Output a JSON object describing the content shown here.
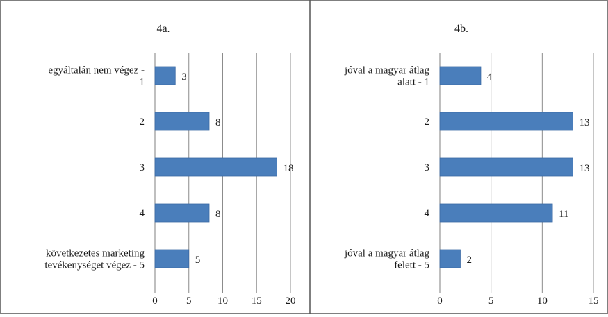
{
  "chart_data": [
    {
      "type": "bar",
      "orientation": "horizontal",
      "title": "4a.",
      "categories": [
        [
          "egyáltalán nem végez -",
          "1"
        ],
        [
          "2"
        ],
        [
          "3"
        ],
        [
          "4"
        ],
        [
          "következetes marketing",
          "tevékenységet végez - 5"
        ]
      ],
      "values": [
        3,
        8,
        18,
        8,
        5
      ],
      "xlim": [
        0,
        20
      ],
      "xticks": [
        0,
        5,
        10,
        15,
        20
      ],
      "grid": true,
      "bar_color": "#4a7ebb"
    },
    {
      "type": "bar",
      "orientation": "horizontal",
      "title": "4b.",
      "categories": [
        [
          "jóval a magyar átlag",
          "alatt - 1"
        ],
        [
          "2"
        ],
        [
          "3"
        ],
        [
          "4"
        ],
        [
          "jóval a magyar átlag",
          "felett - 5"
        ]
      ],
      "values": [
        4,
        13,
        13,
        11,
        2
      ],
      "xlim": [
        0,
        15
      ],
      "xticks": [
        0,
        5,
        10,
        15
      ],
      "grid": true,
      "bar_color": "#4a7ebb"
    }
  ]
}
